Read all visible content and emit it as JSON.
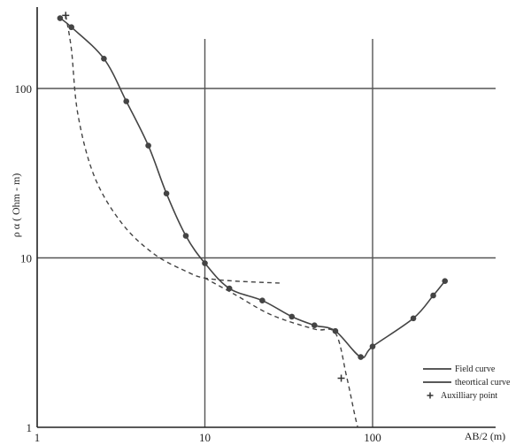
{
  "chart_data": {
    "type": "line",
    "x_scale": "log",
    "y_scale": "log",
    "xlim": [
      1,
      300
    ],
    "ylim": [
      1,
      300
    ],
    "xlabel": "AB/2 (m)",
    "ylabel": "ρ α ( Ohm - m)",
    "x_ticks": [
      "1",
      "10",
      "100"
    ],
    "y_ticks": [
      "1",
      "10",
      "100"
    ],
    "grid": true,
    "legend_position": "bottom-right",
    "legend": [
      {
        "label": "Field curve",
        "marker": "line"
      },
      {
        "label": "theortical curve",
        "marker": "line"
      },
      {
        "label": "Auxilliary point",
        "marker": "+"
      }
    ],
    "series": [
      {
        "name": "Field curve",
        "style": "solid",
        "points": [
          [
            1.37,
            260
          ],
          [
            1.6,
            230
          ],
          [
            2.5,
            150
          ],
          [
            3.4,
            84
          ],
          [
            4.6,
            46
          ],
          [
            5.9,
            24
          ],
          [
            7.7,
            13.5
          ],
          [
            10,
            9.3
          ],
          [
            14,
            6.6
          ],
          [
            22,
            5.6
          ],
          [
            33,
            4.5
          ],
          [
            45,
            4.0
          ],
          [
            60,
            3.7
          ],
          [
            85,
            2.6
          ],
          [
            100,
            3.0
          ],
          [
            175,
            4.4
          ],
          [
            230,
            6.0
          ],
          [
            270,
            7.3
          ]
        ]
      },
      {
        "name": "theortical curve",
        "style": "dashed",
        "segments": [
          [
            [
              1.48,
              270
            ],
            [
              1.6,
              170
            ],
            [
              1.75,
              70
            ],
            [
              2.2,
              30
            ],
            [
              3.2,
              16
            ],
            [
              5,
              10.5
            ],
            [
              8,
              8.2
            ],
            [
              10,
              7.6
            ],
            [
              15,
              7.3
            ],
            [
              28,
              7.1
            ]
          ],
          [
            [
              10,
              7.6
            ],
            [
              15,
              6.1
            ],
            [
              25,
              4.6
            ],
            [
              45,
              3.8
            ],
            [
              60,
              3.6
            ],
            [
              70,
              2.0
            ],
            [
              78,
              1.2
            ],
            [
              82,
              0.98
            ]
          ]
        ]
      },
      {
        "name": "Auxilliary point",
        "style": "cross",
        "points": [
          [
            1.48,
            270
          ],
          [
            65,
            1.95
          ]
        ]
      }
    ]
  }
}
